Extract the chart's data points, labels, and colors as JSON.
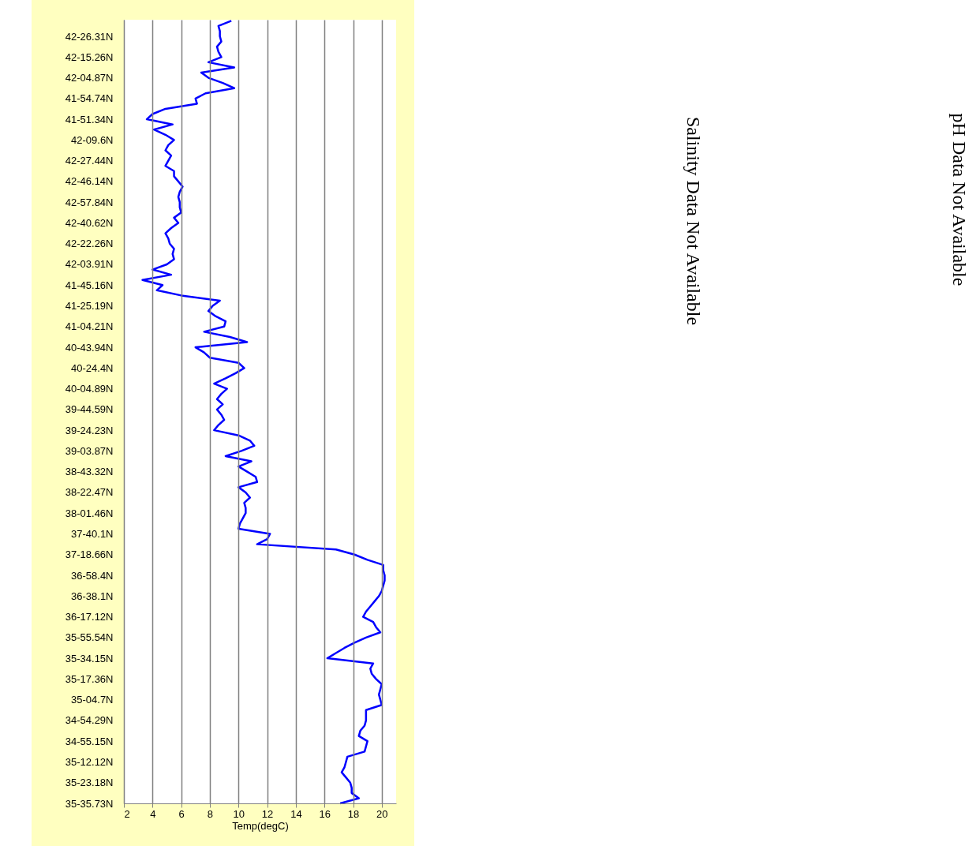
{
  "chart_data": {
    "type": "line",
    "orientation": "horizontal",
    "xlabel": "Temp(degC)",
    "xlim": [
      2,
      21
    ],
    "xticks": [
      2,
      4,
      6,
      8,
      10,
      12,
      14,
      16,
      18,
      20
    ],
    "categories": [
      null,
      null,
      null,
      "42-26.31N",
      null,
      null,
      null,
      "42-15.26N",
      null,
      null,
      null,
      "42-04.87N",
      null,
      null,
      null,
      "41-54.74N",
      null,
      null,
      null,
      "41-51.34N",
      null,
      null,
      null,
      "42-09.6N",
      null,
      null,
      null,
      "42-27.44N",
      null,
      null,
      null,
      "42-46.14N",
      null,
      null,
      null,
      "42-57.84N",
      null,
      null,
      null,
      "42-40.62N",
      null,
      null,
      null,
      "42-22.26N",
      null,
      null,
      null,
      "42-03.91N",
      null,
      null,
      null,
      "41-45.16N",
      null,
      null,
      null,
      "41-25.19N",
      null,
      null,
      null,
      "41-04.21N",
      null,
      null,
      null,
      "40-43.94N",
      null,
      null,
      null,
      "40-24.4N",
      null,
      null,
      null,
      "40-04.89N",
      null,
      null,
      null,
      "39-44.59N",
      null,
      null,
      null,
      "39-24.23N",
      null,
      null,
      null,
      "39-03.87N",
      null,
      null,
      null,
      "38-43.32N",
      null,
      null,
      null,
      "38-22.47N",
      null,
      null,
      null,
      "38-01.46N",
      null,
      null,
      null,
      "37-40.1N",
      null,
      null,
      null,
      "37-18.66N",
      null,
      null,
      null,
      "36-58.4N",
      null,
      null,
      null,
      "36-38.1N",
      null,
      null,
      null,
      "36-17.12N",
      null,
      null,
      null,
      "35-55.54N",
      null,
      null,
      null,
      "35-34.15N",
      null,
      null,
      null,
      "35-17.36N",
      null,
      null,
      null,
      "35-04.7N",
      null,
      null,
      null,
      "34-54.29N",
      null,
      null,
      null,
      "34-55.15N",
      null,
      null,
      null,
      "35-12.12N",
      null,
      null,
      null,
      "35-23.18N",
      null,
      null,
      null,
      "35-35.73N"
    ],
    "grid": "x",
    "line_style": "solid",
    "annotations": [
      "Salinity Data Not Available",
      "pH Data Not Available"
    ],
    "series": [
      {
        "color": "#0000ff",
        "values": [
          9.5,
          8.6,
          8.7,
          8.7,
          8.8,
          8.5,
          8.6,
          8.8,
          7.9,
          9.7,
          7.4,
          7.9,
          8.9,
          9.7,
          7.7,
          7.0,
          7.1,
          4.9,
          4.0,
          3.6,
          5.4,
          4.1,
          4.9,
          5.5,
          5.1,
          4.9,
          5.3,
          5.1,
          4.9,
          5.5,
          5.5,
          5.8,
          6.1,
          5.9,
          5.8,
          5.9,
          5.9,
          6.0,
          5.5,
          5.8,
          5.3,
          4.9,
          5.1,
          5.2,
          5.5,
          5.4,
          5.5,
          5.0,
          4.0,
          5.3,
          3.3,
          4.7,
          4.3,
          6.0,
          8.7,
          8.2,
          7.9,
          8.4,
          9.1,
          9.0,
          7.6,
          9.4,
          10.6,
          7.0,
          7.6,
          8.0,
          10.0,
          10.4,
          9.8,
          9.1,
          8.3,
          9.2,
          8.8,
          8.5,
          8.9,
          8.5,
          8.8,
          9.0,
          8.6,
          8.3,
          10.0,
          10.8,
          11.1,
          10.2,
          9.1,
          10.9,
          10.0,
          10.6,
          11.2,
          11.3,
          10.0,
          10.5,
          10.8,
          10.4,
          10.5,
          10.5,
          10.3,
          10.1,
          10.0,
          12.2,
          12.0,
          11.3,
          16.8,
          18.1,
          19.0,
          20.1,
          20.1,
          20.2,
          20.2,
          20.1,
          20.0,
          19.8,
          19.5,
          19.2,
          18.9,
          18.7,
          19.4,
          19.6,
          19.9,
          18.9,
          18.1,
          17.4,
          16.8,
          16.2,
          19.4,
          19.2,
          19.3,
          19.6,
          20.0,
          19.9,
          19.8,
          19.9,
          20.0,
          18.9,
          18.9,
          18.9,
          18.8,
          18.5,
          18.4,
          19.0,
          18.9,
          18.8,
          17.6,
          17.5,
          17.4,
          17.2,
          17.5,
          17.8,
          17.9,
          17.9,
          18.4,
          17.1
        ]
      }
    ]
  }
}
